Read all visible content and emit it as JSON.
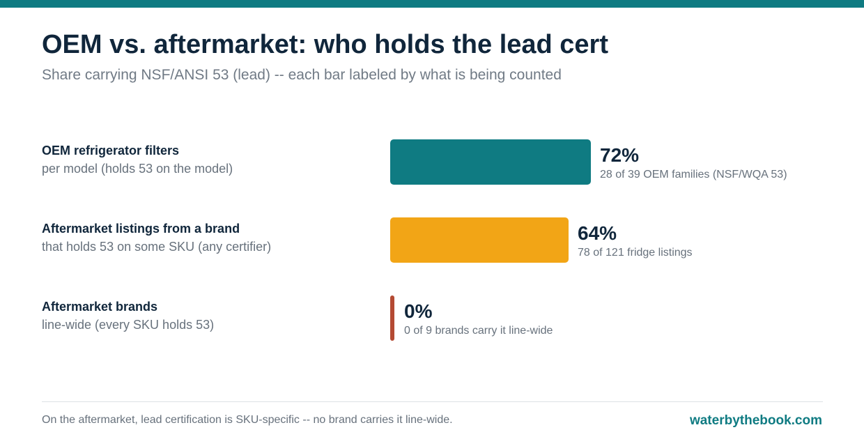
{
  "header": {
    "title": "OEM vs. aftermarket: who holds the lead cert",
    "subtitle": "Share carrying NSF/ANSI 53 (lead) -- each bar labeled by what is being counted"
  },
  "chart_data": {
    "type": "bar",
    "orientation": "horizontal",
    "title": "OEM vs. aftermarket: who holds the lead cert",
    "subtitle": "Share carrying NSF/ANSI 53 (lead) -- each bar labeled by what is being counted",
    "xlim": [
      0,
      100
    ],
    "unit": "%",
    "grid": false,
    "categories": [
      "OEM refrigerator filters",
      "Aftermarket listings from a brand",
      "Aftermarket brands"
    ],
    "rows": [
      {
        "label": "OEM refrigerator filters",
        "sublabel": "per model (holds 53 on the model)",
        "value": 72,
        "value_label": "72%",
        "note": "28 of 39 OEM families (NSF/WQA 53)",
        "color": "#0f7b82"
      },
      {
        "label": "Aftermarket listings from a brand",
        "sublabel": "that holds 53 on some SKU (any certifier)",
        "value": 64,
        "value_label": "64%",
        "note": "78 of 121 fridge listings",
        "color": "#f2a516"
      },
      {
        "label": "Aftermarket brands",
        "sublabel": "line-wide (every SKU holds 53)",
        "value": 0,
        "value_label": "0%",
        "note": "0 of 9 brands carry it line-wide",
        "color": "#b44a33"
      }
    ]
  },
  "footer": {
    "note": "On the aftermarket, lead certification is SKU-specific -- no brand carries it line-wide.",
    "brand": "waterbythebook.com"
  },
  "colors": {
    "accent": "#0f7b82",
    "text": "#10263b",
    "muted": "#67717c"
  }
}
